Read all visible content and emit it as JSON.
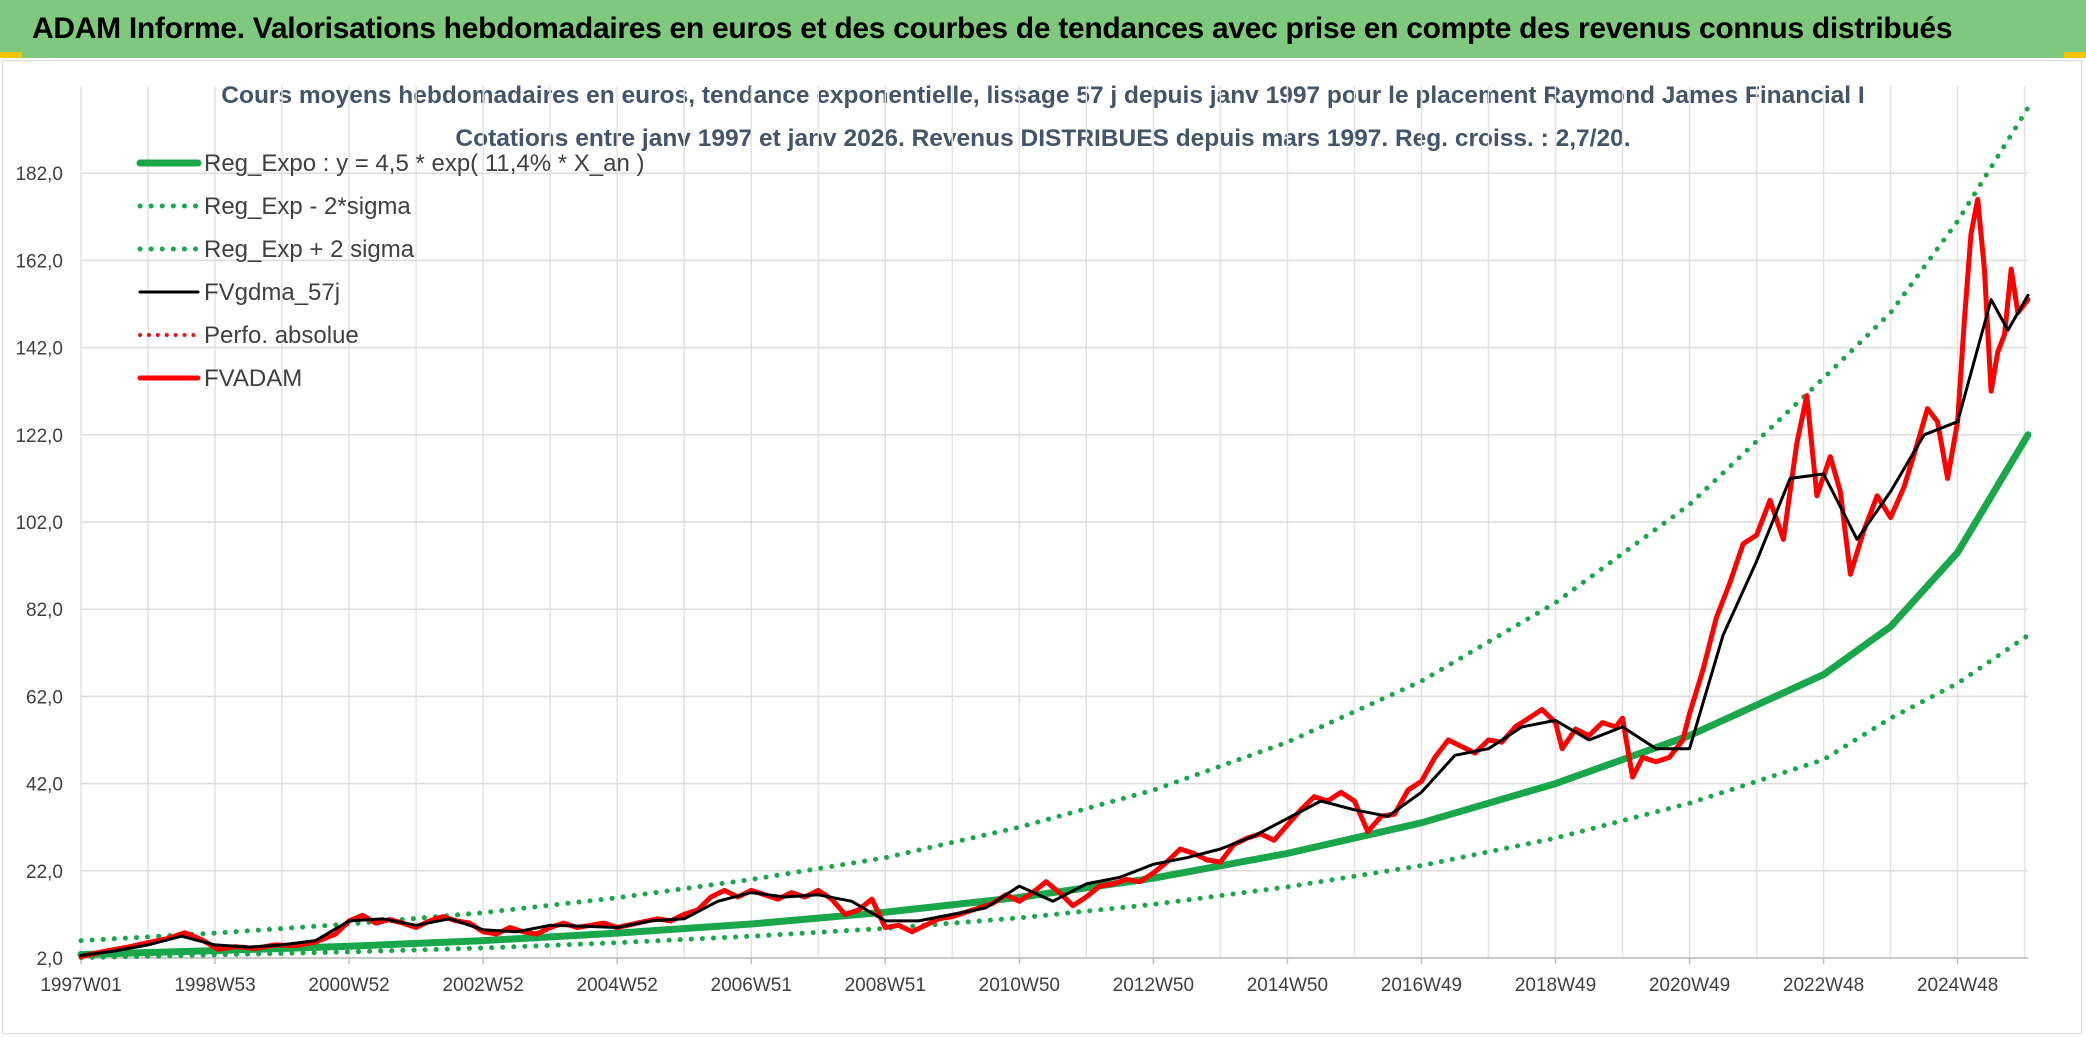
{
  "banner": {
    "title": "ADAM Informe. Valorisations hebdomadaires en euros et des courbes de tendances avec prise en compte des revenus connus distribués",
    "background": "#7fc97f"
  },
  "chart_data": {
    "type": "line",
    "title": "Cours moyens hebdomadaires en euros, tendance exponentielle, lissage 57 j depuis janv 1997 pour le placement Raymond James Financial I",
    "subtitle": "Cotations entre janv 1997 et janv 2026. Revenus DISTRIBUES depuis mars 1997. Reg. croiss. : 2,7/20.",
    "xlabel": "",
    "ylabel": "",
    "x_range": [
      1997.0,
      2026.05
    ],
    "ylim": [
      2.0,
      202.0
    ],
    "yticks": [
      "2,0",
      "22,0",
      "42,0",
      "62,0",
      "82,0",
      "102,0",
      "122,0",
      "142,0",
      "162,0",
      "182,0"
    ],
    "xticks": [
      {
        "label": "1997W01",
        "x": 1997.0
      },
      {
        "label": "1998W53",
        "x": 1999.0
      },
      {
        "label": "2000W52",
        "x": 2001.0
      },
      {
        "label": "2002W52",
        "x": 2003.0
      },
      {
        "label": "2004W52",
        "x": 2005.0
      },
      {
        "label": "2006W51",
        "x": 2007.0
      },
      {
        "label": "2008W51",
        "x": 2009.0
      },
      {
        "label": "2010W50",
        "x": 2011.0
      },
      {
        "label": "2012W50",
        "x": 2013.0
      },
      {
        "label": "2014W50",
        "x": 2015.0
      },
      {
        "label": "2016W49",
        "x": 2017.0
      },
      {
        "label": "2018W49",
        "x": 2019.0
      },
      {
        "label": "2020W49",
        "x": 2021.0
      },
      {
        "label": "2022W48",
        "x": 2023.0
      },
      {
        "label": "2024W48",
        "x": 2025.0
      }
    ],
    "grid": true,
    "legend_position": "top-left",
    "series": [
      {
        "name": "Reg_Expo : y = 4,5 * exp( 11,4% *  X_an )",
        "color": "#1aa64a",
        "style": "solid",
        "width": 7,
        "points": [
          [
            1997.0,
            2.8
          ],
          [
            1999,
            3.7
          ],
          [
            2001,
            4.7
          ],
          [
            2003,
            6.0
          ],
          [
            2005,
            7.7
          ],
          [
            2007,
            9.8
          ],
          [
            2009,
            12.5
          ],
          [
            2011,
            15.9
          ],
          [
            2013,
            20.3
          ],
          [
            2015,
            26.0
          ],
          [
            2017,
            33.0
          ],
          [
            2019,
            42.0
          ],
          [
            2021,
            53.0
          ],
          [
            2023,
            67.0
          ],
          [
            2024,
            78.0
          ],
          [
            2025,
            95.0
          ],
          [
            2026.05,
            122.0
          ]
        ]
      },
      {
        "name": "Reg_Exp - 2*sigma",
        "color": "#1aa64a",
        "style": "dotted",
        "width": 5,
        "points": [
          [
            1997.0,
            2.1
          ],
          [
            1999,
            2.7
          ],
          [
            2001,
            3.4
          ],
          [
            2003,
            4.3
          ],
          [
            2005,
            5.5
          ],
          [
            2007,
            7.0
          ],
          [
            2009,
            8.8
          ],
          [
            2011,
            11.2
          ],
          [
            2013,
            14.3
          ],
          [
            2015,
            18.3
          ],
          [
            2017,
            23.2
          ],
          [
            2019,
            29.5
          ],
          [
            2021,
            37.5
          ],
          [
            2023,
            47.5
          ],
          [
            2024,
            57.0
          ],
          [
            2025,
            65.0
          ],
          [
            2026.05,
            76.0
          ]
        ]
      },
      {
        "name": "Reg_Exp + 2 sigma",
        "color": "#1aa64a",
        "style": "dotted",
        "width": 5,
        "points": [
          [
            1997.0,
            6.0
          ],
          [
            1999,
            7.7
          ],
          [
            2001,
            9.8
          ],
          [
            2003,
            12.4
          ],
          [
            2005,
            15.8
          ],
          [
            2007,
            20.0
          ],
          [
            2009,
            25.0
          ],
          [
            2011,
            32.0
          ],
          [
            2013,
            40.5
          ],
          [
            2015,
            51.5
          ],
          [
            2017,
            65.5
          ],
          [
            2019,
            83.5
          ],
          [
            2021,
            106.0
          ],
          [
            2023,
            135.0
          ],
          [
            2024,
            150.0
          ],
          [
            2025,
            171.0
          ],
          [
            2026.05,
            197.0
          ]
        ]
      },
      {
        "name": "FVgdma_57j",
        "color": "#000000",
        "style": "solid",
        "width": 3,
        "points": [
          [
            1997.0,
            2.6
          ],
          [
            1997.5,
            3.6
          ],
          [
            1998,
            5.0
          ],
          [
            1998.5,
            7.0
          ],
          [
            1999,
            5.0
          ],
          [
            1999.5,
            4.5
          ],
          [
            2000,
            5.0
          ],
          [
            2000.5,
            6.0
          ],
          [
            2001,
            10.5
          ],
          [
            2001.5,
            11.0
          ],
          [
            2002,
            9.5
          ],
          [
            2002.5,
            11.0
          ],
          [
            2003,
            8.5
          ],
          [
            2003.5,
            8.0
          ],
          [
            2004,
            9.5
          ],
          [
            2004.5,
            9.3
          ],
          [
            2005,
            9.0
          ],
          [
            2005.5,
            10.5
          ],
          [
            2006,
            11.0
          ],
          [
            2006.5,
            15.0
          ],
          [
            2007,
            17.0
          ],
          [
            2007.5,
            16.0
          ],
          [
            2008,
            16.5
          ],
          [
            2008.5,
            15.0
          ],
          [
            2009,
            10.5
          ],
          [
            2009.5,
            10.5
          ],
          [
            2010,
            12.0
          ],
          [
            2010.5,
            13.5
          ],
          [
            2011,
            18.5
          ],
          [
            2011.5,
            15.0
          ],
          [
            2012,
            19.0
          ],
          [
            2012.5,
            20.5
          ],
          [
            2013,
            23.5
          ],
          [
            2013.5,
            25.0
          ],
          [
            2014,
            27.0
          ],
          [
            2014.5,
            30.0
          ],
          [
            2015,
            34.0
          ],
          [
            2015.5,
            38.0
          ],
          [
            2016,
            36.0
          ],
          [
            2016.5,
            34.5
          ],
          [
            2017,
            40.0
          ],
          [
            2017.5,
            48.5
          ],
          [
            2018,
            50.0
          ],
          [
            2018.5,
            55.0
          ],
          [
            2019,
            56.5
          ],
          [
            2019.5,
            52.0
          ],
          [
            2020,
            55.0
          ],
          [
            2020.5,
            50.0
          ],
          [
            2021,
            50.0
          ],
          [
            2021.5,
            76.0
          ],
          [
            2022,
            93.0
          ],
          [
            2022.5,
            112.0
          ],
          [
            2023,
            113.0
          ],
          [
            2023.5,
            98.0
          ],
          [
            2024,
            109.0
          ],
          [
            2024.5,
            122.0
          ],
          [
            2025,
            125.0
          ],
          [
            2025.5,
            153.0
          ],
          [
            2025.75,
            146.0
          ],
          [
            2026.05,
            154.0
          ]
        ]
      },
      {
        "name": "Perfo. absolue",
        "color": "#e31a1c",
        "style": "dotted",
        "width": 4,
        "points": []
      },
      {
        "name": "FVADAM",
        "color": "#ff0000",
        "style": "solid",
        "width": 5,
        "points": [
          [
            1997.0,
            2.3
          ],
          [
            1997.3,
            3.4
          ],
          [
            1997.7,
            4.5
          ],
          [
            1998,
            5.5
          ],
          [
            1998.3,
            6.5
          ],
          [
            1998.55,
            7.8
          ],
          [
            1998.8,
            6.2
          ],
          [
            1999.05,
            4.0
          ],
          [
            1999.3,
            4.6
          ],
          [
            1999.6,
            4.2
          ],
          [
            1999.9,
            5.0
          ],
          [
            2000.2,
            4.8
          ],
          [
            2000.5,
            5.7
          ],
          [
            2000.8,
            7.5
          ],
          [
            2001.0,
            10.5
          ],
          [
            2001.2,
            11.8
          ],
          [
            2001.4,
            10.0
          ],
          [
            2001.6,
            10.8
          ],
          [
            2001.8,
            10.0
          ],
          [
            2002.0,
            9.0
          ],
          [
            2002.2,
            10.5
          ],
          [
            2002.4,
            11.5
          ],
          [
            2002.6,
            10.5
          ],
          [
            2002.8,
            10.0
          ],
          [
            2003.0,
            8.0
          ],
          [
            2003.2,
            7.5
          ],
          [
            2003.4,
            9.0
          ],
          [
            2003.6,
            8.0
          ],
          [
            2003.8,
            7.5
          ],
          [
            2004.0,
            9.0
          ],
          [
            2004.2,
            10.0
          ],
          [
            2004.4,
            9.0
          ],
          [
            2004.6,
            9.5
          ],
          [
            2004.8,
            10.0
          ],
          [
            2005.0,
            9.0
          ],
          [
            2005.3,
            10.0
          ],
          [
            2005.6,
            11.0
          ],
          [
            2005.8,
            10.5
          ],
          [
            2006.0,
            12.0
          ],
          [
            2006.2,
            13.0
          ],
          [
            2006.4,
            16.0
          ],
          [
            2006.6,
            17.5
          ],
          [
            2006.8,
            16.0
          ],
          [
            2007.0,
            17.5
          ],
          [
            2007.2,
            16.5
          ],
          [
            2007.4,
            15.5
          ],
          [
            2007.6,
            17.0
          ],
          [
            2007.8,
            16.0
          ],
          [
            2008.0,
            17.5
          ],
          [
            2008.2,
            15.5
          ],
          [
            2008.4,
            12.0
          ],
          [
            2008.6,
            13.0
          ],
          [
            2008.8,
            15.5
          ],
          [
            2009.0,
            9.0
          ],
          [
            2009.2,
            9.5
          ],
          [
            2009.4,
            8.0
          ],
          [
            2009.6,
            9.5
          ],
          [
            2009.8,
            11.0
          ],
          [
            2010.0,
            11.5
          ],
          [
            2010.2,
            12.5
          ],
          [
            2010.4,
            13.5
          ],
          [
            2010.6,
            14.5
          ],
          [
            2010.8,
            16.5
          ],
          [
            2011.0,
            15.0
          ],
          [
            2011.2,
            17.0
          ],
          [
            2011.4,
            19.5
          ],
          [
            2011.6,
            17.0
          ],
          [
            2011.8,
            14.0
          ],
          [
            2012.0,
            16.0
          ],
          [
            2012.2,
            18.5
          ],
          [
            2012.4,
            19.0
          ],
          [
            2012.6,
            20.0
          ],
          [
            2012.8,
            19.5
          ],
          [
            2013.0,
            21.5
          ],
          [
            2013.2,
            24.0
          ],
          [
            2013.4,
            27.0
          ],
          [
            2013.6,
            26.0
          ],
          [
            2013.8,
            24.5
          ],
          [
            2014.0,
            24.0
          ],
          [
            2014.2,
            28.0
          ],
          [
            2014.4,
            29.5
          ],
          [
            2014.6,
            30.5
          ],
          [
            2014.8,
            29.0
          ],
          [
            2015.0,
            32.5
          ],
          [
            2015.2,
            36.0
          ],
          [
            2015.4,
            39.0
          ],
          [
            2015.6,
            38.0
          ],
          [
            2015.8,
            40.0
          ],
          [
            2016.0,
            38.0
          ],
          [
            2016.2,
            31.0
          ],
          [
            2016.4,
            34.5
          ],
          [
            2016.6,
            35.0
          ],
          [
            2016.8,
            40.5
          ],
          [
            2017.0,
            42.5
          ],
          [
            2017.2,
            48.0
          ],
          [
            2017.4,
            52.0
          ],
          [
            2017.6,
            50.5
          ],
          [
            2017.8,
            49.0
          ],
          [
            2018.0,
            52.0
          ],
          [
            2018.2,
            51.5
          ],
          [
            2018.4,
            55.0
          ],
          [
            2018.6,
            57.0
          ],
          [
            2018.8,
            59.0
          ],
          [
            2019.0,
            56.0
          ],
          [
            2019.1,
            50.0
          ],
          [
            2019.3,
            54.5
          ],
          [
            2019.5,
            53.0
          ],
          [
            2019.7,
            56.0
          ],
          [
            2019.9,
            55.0
          ],
          [
            2020.0,
            57.0
          ],
          [
            2020.15,
            43.5
          ],
          [
            2020.3,
            48.0
          ],
          [
            2020.5,
            47.0
          ],
          [
            2020.7,
            48.0
          ],
          [
            2020.9,
            52.0
          ],
          [
            2021.0,
            58.0
          ],
          [
            2021.2,
            68.0
          ],
          [
            2021.4,
            80.0
          ],
          [
            2021.6,
            88.0
          ],
          [
            2021.8,
            97.0
          ],
          [
            2022.0,
            99.0
          ],
          [
            2022.2,
            107.0
          ],
          [
            2022.4,
            98.0
          ],
          [
            2022.6,
            120.0
          ],
          [
            2022.75,
            131.0
          ],
          [
            2022.9,
            108.0
          ],
          [
            2023.1,
            117.0
          ],
          [
            2023.25,
            109.0
          ],
          [
            2023.4,
            90.0
          ],
          [
            2023.6,
            100.0
          ],
          [
            2023.8,
            108.0
          ],
          [
            2024.0,
            103.0
          ],
          [
            2024.2,
            110.0
          ],
          [
            2024.4,
            120.0
          ],
          [
            2024.55,
            128.0
          ],
          [
            2024.7,
            125.0
          ],
          [
            2024.85,
            112.0
          ],
          [
            2025.0,
            125.0
          ],
          [
            2025.1,
            148.0
          ],
          [
            2025.2,
            168.0
          ],
          [
            2025.3,
            176.0
          ],
          [
            2025.4,
            160.0
          ],
          [
            2025.5,
            132.0
          ],
          [
            2025.6,
            141.0
          ],
          [
            2025.7,
            145.0
          ],
          [
            2025.8,
            160.0
          ],
          [
            2025.9,
            150.0
          ],
          [
            2026.05,
            153.0
          ]
        ]
      }
    ]
  }
}
